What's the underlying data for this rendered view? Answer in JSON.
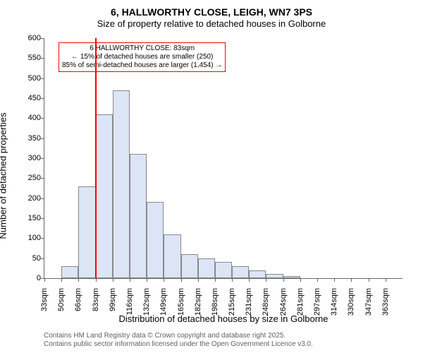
{
  "title": "6, HALLWORTHY CLOSE, LEIGH, WN7 3PS",
  "subtitle": "Size of property relative to detached houses in Golborne",
  "chart": {
    "type": "histogram",
    "y_axis_label": "Number of detached properties",
    "x_axis_label": "Distribution of detached houses by size in Golborne",
    "ylim": [
      0,
      600
    ],
    "ytick_step": 50,
    "bar_fill": "#dbe5f6",
    "bar_stroke": "#898989",
    "background_color": "#ffffff",
    "axis_color": "#666666",
    "categories": [
      "33sqm",
      "50sqm",
      "66sqm",
      "83sqm",
      "99sqm",
      "116sqm",
      "132sqm",
      "149sqm",
      "165sqm",
      "182sqm",
      "198sqm",
      "215sqm",
      "231sqm",
      "248sqm",
      "264sqm",
      "281sqm",
      "297sqm",
      "314sqm",
      "330sqm",
      "347sqm",
      "363sqm"
    ],
    "values": [
      0,
      30,
      230,
      410,
      470,
      310,
      190,
      110,
      60,
      50,
      40,
      30,
      20,
      10,
      5,
      0,
      0,
      0,
      0,
      0,
      0
    ],
    "marker": {
      "category_index": 3,
      "color": "#ff0000"
    },
    "annotation": {
      "border_color": "#ff0000",
      "line1": "6 HALLWORTHY CLOSE: 83sqm",
      "line2": "← 15% of detached houses are smaller (250)",
      "line3": "85% of semi-detached houses are larger (1,454) →"
    }
  },
  "footer": {
    "line1": "Contains HM Land Registry data © Crown copyright and database right 2025.",
    "line2": "Contains public sector information licensed under the Open Government Licence v3.0."
  }
}
